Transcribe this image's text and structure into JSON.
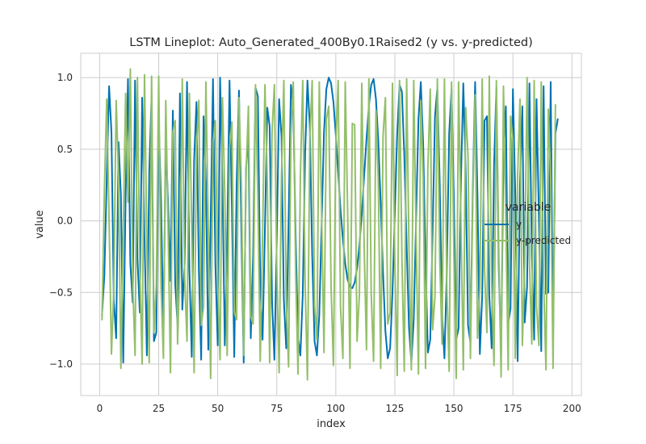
{
  "chart_data": {
    "type": "line",
    "title": "LSTM Lineplot: Auto_Generated_400By0.1Raised2 (y vs. y-predicted)",
    "xlabel": "index",
    "ylabel": "value",
    "xlim": [
      -8,
      204
    ],
    "ylim": [
      -1.22,
      1.17
    ],
    "xticks": [
      0,
      25,
      50,
      75,
      100,
      125,
      150,
      175,
      200
    ],
    "yticks": [
      -1.0,
      -0.5,
      0.0,
      0.5,
      1.0
    ],
    "xtick_labels": [
      "0",
      "25",
      "50",
      "75",
      "100",
      "125",
      "150",
      "175",
      "200"
    ],
    "ytick_labels": [
      "−1.0",
      "−0.5",
      "0.0",
      "0.5",
      "1.0"
    ],
    "grid": true,
    "legend": {
      "title": "variable",
      "placement": "center-right"
    },
    "series": [
      {
        "name": "y",
        "color": "#0072B2",
        "x_start": 1,
        "values": [
          -0.66,
          -0.38,
          0.29,
          0.94,
          0.62,
          -0.56,
          -0.82,
          0.55,
          0.18,
          -0.99,
          0.17,
          0.99,
          -0.3,
          -0.57,
          0.98,
          -0.26,
          -0.64,
          0.86,
          -0.11,
          -0.94,
          0.34,
          0.88,
          -0.84,
          -0.78,
          0.72,
          0.14,
          -0.81,
          0.55,
          0.12,
          -0.42,
          0.77,
          -0.44,
          -0.73,
          0.89,
          -0.62,
          -0.3,
          0.97,
          -0.34,
          -0.95,
          0.42,
          0.83,
          -0.34,
          -0.97,
          0.73,
          0.26,
          -0.9,
          -0.01,
          0.99,
          -0.3,
          -0.87,
          1.0,
          0.26,
          -0.87,
          -0.14,
          0.98,
          0.09,
          -0.95,
          0.25,
          0.91,
          -0.06,
          -0.99,
          0.37,
          0.58,
          -0.82,
          -0.23,
          0.93,
          0.87,
          -0.43,
          -0.83,
          -0.05,
          0.79,
          0.66,
          -0.56,
          -0.97,
          -0.14,
          0.85,
          0.59,
          -0.55,
          -0.89,
          -0.01,
          0.95,
          0.79,
          -0.11,
          -0.81,
          -0.94,
          -0.52,
          0.46,
          0.98,
          0.66,
          -0.24,
          -0.84,
          -0.94,
          -0.66,
          -0.03,
          0.62,
          0.92,
          1.0,
          0.96,
          0.83,
          0.6,
          0.34,
          0.08,
          -0.13,
          -0.3,
          -0.41,
          -0.46,
          -0.47,
          -0.43,
          -0.33,
          -0.17,
          0.05,
          0.31,
          0.57,
          0.8,
          0.95,
          0.99,
          0.85,
          0.56,
          0.12,
          -0.36,
          -0.77,
          -0.96,
          -0.89,
          -0.5,
          0.06,
          0.61,
          0.95,
          0.9,
          0.46,
          -0.17,
          -0.75,
          -0.99,
          -0.69,
          0.01,
          0.71,
          0.97,
          0.54,
          -0.28,
          -0.92,
          -0.83,
          -0.08,
          0.73,
          0.93,
          0.27,
          -0.65,
          -0.96,
          -0.36,
          0.61,
          0.92,
          0.15,
          -0.83,
          -0.75,
          0.29,
          0.96,
          0.34,
          -0.73,
          -0.85,
          0.21,
          0.97,
          0.18,
          -0.93,
          -0.52,
          0.7,
          0.73,
          -0.52,
          -0.89,
          0.38,
          0.93,
          -0.33,
          -0.92,
          0.45,
          0.8,
          -0.72,
          -0.61,
          0.92,
          0.19,
          -0.98,
          0.26,
          0.8,
          -0.71,
          -0.46,
          0.96,
          -0.23,
          -0.83,
          0.85,
          0.03,
          -0.91,
          0.94,
          -0.51,
          -0.5,
          0.97,
          -0.85,
          0.61,
          0.71
        ]
      },
      {
        "name": "y-predicted",
        "color": "#94BF6A",
        "x_start": 1,
        "values": [
          -0.69,
          0.21,
          0.85,
          0.01,
          -0.93,
          -0.47,
          0.84,
          0.31,
          -1.03,
          -0.07,
          0.89,
          0.13,
          1.06,
          -0.43,
          -0.94,
          1.0,
          -0.33,
          -1.0,
          1.02,
          -0.17,
          -0.99,
          1.01,
          -0.78,
          -0.45,
          1.01,
          -0.45,
          -0.96,
          0.84,
          -0.06,
          -1.06,
          0.62,
          0.7,
          -0.86,
          -0.29,
          0.99,
          -0.4,
          -0.84,
          0.89,
          -0.06,
          -1.06,
          0.51,
          0.84,
          -0.73,
          -0.6,
          0.97,
          -0.05,
          -1.1,
          0.55,
          0.7,
          -0.43,
          -0.97,
          0.86,
          0.18,
          -0.94,
          0.51,
          0.69,
          -0.64,
          -0.69,
          0.86,
          0.26,
          -0.94,
          0.33,
          0.8,
          -0.67,
          -0.72,
          0.95,
          0.17,
          -0.98,
          -0.1,
          0.95,
          0.27,
          -0.99,
          0.62,
          0.95,
          -0.33,
          -1.06,
          0.32,
          0.98,
          -0.56,
          -1.02,
          0.61,
          0.97,
          -0.36,
          -1.07,
          0.31,
          0.98,
          -0.44,
          -1.11,
          0.57,
          0.98,
          -0.59,
          -0.83,
          0.97,
          0.04,
          -0.92,
          0.71,
          0.8,
          -0.46,
          -1.01,
          0.53,
          0.98,
          -0.6,
          -0.96,
          0.97,
          0.08,
          -1.03,
          0.68,
          0.67,
          -0.84,
          -0.51,
          0.96,
          -0.17,
          -0.9,
          0.99,
          -0.51,
          -0.98,
          0.77,
          0.28,
          -1.03,
          0.59,
          0.86,
          -0.72,
          -0.64,
          0.96,
          -0.29,
          -1.08,
          0.98,
          -0.26,
          -1.05,
          0.99,
          -0.21,
          -1.04,
          0.98,
          -0.11,
          -1.07,
          0.84,
          0.29,
          -1.03,
          0.38,
          0.92,
          -0.76,
          -0.53,
          0.99,
          -0.26,
          -0.86,
          0.99,
          -0.45,
          -1.05,
          0.97,
          -0.24,
          -1.1,
          0.97,
          -0.03,
          -1.04,
          0.79,
          0.45,
          -0.96,
          0.13,
          0.88,
          -0.82,
          -0.47,
          0.99,
          -0.35,
          -0.78,
          1.01,
          -0.43,
          -1.01,
          0.98,
          -0.2,
          -1.09,
          0.94,
          0.01,
          -1.04,
          0.73,
          0.56,
          -0.96,
          0.32,
          0.85,
          -0.87,
          -0.3,
          1.0,
          -0.29,
          -0.86,
          0.98,
          -0.6,
          -0.87,
          0.97,
          -0.42,
          -1.04,
          0.78,
          0.3,
          -1.03,
          0.81
        ]
      }
    ]
  }
}
